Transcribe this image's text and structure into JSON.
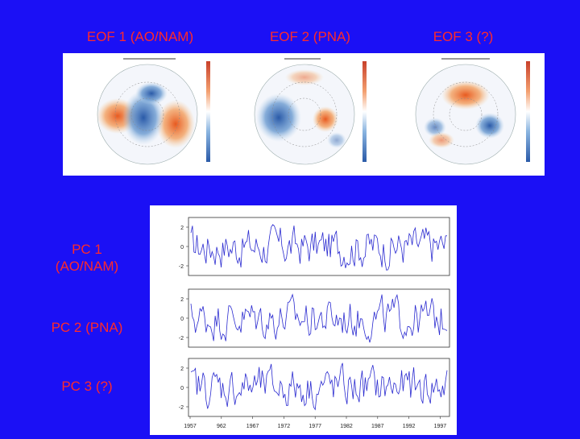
{
  "eof_titles": [
    "EOF 1 (AO/NAM)",
    "EOF 2 (PNA)",
    "EOF 3 (?)"
  ],
  "pc_labels": {
    "pc1_line1": "PC 1",
    "pc1_line2": "(AO/NAM)",
    "pc2": "PC 2 (PNA)",
    "pc3": "PC 3 (?)"
  },
  "colors": {
    "background": "#1b10f5",
    "title_text": "#ff2a2a",
    "series_line": "#2a2ad0",
    "positive_anomaly": "#f07030",
    "negative_anomaly": "#3a6ac0"
  },
  "chart_data": {
    "type": "line",
    "x_tick_labels": [
      "1957",
      "962",
      "1967",
      "1972",
      "1977",
      "1982",
      "1987",
      "1992",
      "1997"
    ],
    "y_tick_labels": [
      "2",
      "0",
      "-2"
    ],
    "ylim": [
      -3,
      3
    ],
    "series": [
      {
        "panel": "pc1"
      },
      {
        "panel": "pc2"
      },
      {
        "panel": "pc3"
      }
    ]
  }
}
